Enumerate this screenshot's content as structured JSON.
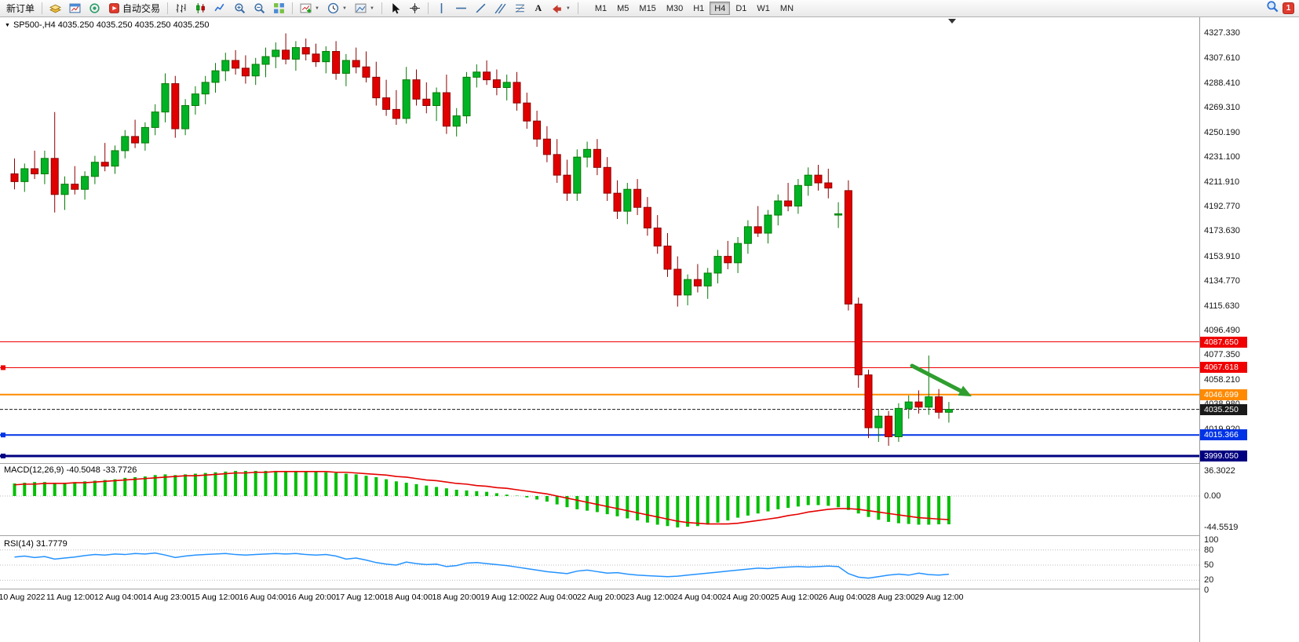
{
  "toolbar": {
    "new_order_label": "新订单",
    "auto_trading_label": "自动交易",
    "timeframes": [
      "M1",
      "M5",
      "M15",
      "M30",
      "H1",
      "H4",
      "D1",
      "W1",
      "MN"
    ],
    "active_timeframe": "H4",
    "notification_count": "1"
  },
  "chart": {
    "header": "SP500-,H4  4035.250 4035.250 4035.250 4035.250"
  },
  "chart_data": {
    "type": "candlestick",
    "symbol": "SP500-",
    "timeframe": "H4",
    "ohlc_display": [
      "4035.250",
      "4035.250",
      "4035.250",
      "4035.250"
    ],
    "colors": {
      "bull": "#00b325",
      "bull_border": "#067a06",
      "bear": "#e00000",
      "bear_border": "#8f0000",
      "macd_histogram": "#00bf00",
      "macd_signal": "#e60000",
      "rsi_line": "#2492ff",
      "arrow": "#2f9e2f"
    },
    "price_axis_labels": [
      "4327.330",
      "4307.610",
      "4288.410",
      "4269.310",
      "4250.190",
      "4231.100",
      "4211.910",
      "4192.770",
      "4173.630",
      "4153.910",
      "4134.770",
      "4115.630",
      "4096.490",
      "4077.350",
      "4058.210",
      "4038.980",
      "4019.920"
    ],
    "levels": [
      {
        "price": 4087.65,
        "label": "4087.650",
        "color": "#f00000",
        "width": 1,
        "style": "solid",
        "marker": false
      },
      {
        "price": 4067.618,
        "label": "4067.618",
        "color": "#f00000",
        "width": 1,
        "style": "solid",
        "marker": true
      },
      {
        "price": 4046.699,
        "label": "4046.699",
        "color": "#ff8a00",
        "width": 2,
        "style": "solid",
        "marker": false
      },
      {
        "price": 4035.25,
        "label": "4035.250",
        "color": "#1a1a1a",
        "width": 1,
        "style": "dashed",
        "marker": false
      },
      {
        "price": 4015.366,
        "label": "4015.366",
        "color": "#0033e6",
        "width": 2,
        "style": "solid",
        "marker": true
      },
      {
        "price": 3999.05,
        "label": "3999.050",
        "color": "#000080",
        "width": 3,
        "style": "solid",
        "marker": true
      }
    ],
    "candles": [
      [
        4218,
        4230,
        4206,
        4212
      ],
      [
        4212,
        4226,
        4204,
        4222
      ],
      [
        4222,
        4236,
        4214,
        4218
      ],
      [
        4218,
        4236,
        4210,
        4230
      ],
      [
        4230,
        4266,
        4188,
        4202
      ],
      [
        4202,
        4216,
        4190,
        4210
      ],
      [
        4210,
        4224,
        4202,
        4206
      ],
      [
        4206,
        4220,
        4198,
        4216
      ],
      [
        4216,
        4232,
        4210,
        4227
      ],
      [
        4227,
        4242,
        4220,
        4224
      ],
      [
        4224,
        4240,
        4218,
        4236
      ],
      [
        4236,
        4252,
        4230,
        4247
      ],
      [
        4247,
        4260,
        4238,
        4242
      ],
      [
        4242,
        4258,
        4236,
        4254
      ],
      [
        4254,
        4272,
        4248,
        4266
      ],
      [
        4266,
        4296,
        4258,
        4288
      ],
      [
        4288,
        4294,
        4246,
        4253
      ],
      [
        4253,
        4276,
        4248,
        4271
      ],
      [
        4271,
        4286,
        4264,
        4280
      ],
      [
        4280,
        4294,
        4272,
        4289
      ],
      [
        4289,
        4304,
        4281,
        4298
      ],
      [
        4298,
        4312,
        4290,
        4306
      ],
      [
        4306,
        4314,
        4295,
        4300
      ],
      [
        4300,
        4310,
        4288,
        4294
      ],
      [
        4294,
        4308,
        4287,
        4303
      ],
      [
        4303,
        4316,
        4293,
        4309
      ],
      [
        4309,
        4320,
        4300,
        4314
      ],
      [
        4314,
        4327,
        4303,
        4307
      ],
      [
        4307,
        4321,
        4298,
        4316
      ],
      [
        4316,
        4323,
        4306,
        4311
      ],
      [
        4311,
        4319,
        4301,
        4305
      ],
      [
        4305,
        4317,
        4296,
        4313
      ],
      [
        4313,
        4321,
        4291,
        4296
      ],
      [
        4296,
        4311,
        4286,
        4306
      ],
      [
        4306,
        4316,
        4296,
        4301
      ],
      [
        4301,
        4313,
        4289,
        4293
      ],
      [
        4293,
        4305,
        4271,
        4277
      ],
      [
        4277,
        4291,
        4263,
        4268
      ],
      [
        4268,
        4283,
        4256,
        4261
      ],
      [
        4261,
        4301,
        4257,
        4291
      ],
      [
        4291,
        4299,
        4271,
        4276
      ],
      [
        4276,
        4289,
        4265,
        4271
      ],
      [
        4271,
        4285,
        4259,
        4281
      ],
      [
        4281,
        4295,
        4249,
        4255
      ],
      [
        4255,
        4269,
        4247,
        4263
      ],
      [
        4263,
        4297,
        4257,
        4293
      ],
      [
        4293,
        4303,
        4285,
        4297
      ],
      [
        4297,
        4306,
        4287,
        4291
      ],
      [
        4291,
        4299,
        4279,
        4285
      ],
      [
        4285,
        4295,
        4275,
        4289
      ],
      [
        4289,
        4297,
        4267,
        4273
      ],
      [
        4273,
        4281,
        4253,
        4259
      ],
      [
        4259,
        4267,
        4239,
        4245
      ],
      [
        4245,
        4255,
        4227,
        4233
      ],
      [
        4233,
        4245,
        4211,
        4217
      ],
      [
        4217,
        4229,
        4197,
        4203
      ],
      [
        4203,
        4237,
        4197,
        4231
      ],
      [
        4231,
        4243,
        4223,
        4237
      ],
      [
        4237,
        4245,
        4217,
        4223
      ],
      [
        4223,
        4231,
        4197,
        4203
      ],
      [
        4203,
        4213,
        4183,
        4189
      ],
      [
        4189,
        4211,
        4179,
        4206
      ],
      [
        4206,
        4214,
        4186,
        4192
      ],
      [
        4192,
        4200,
        4170,
        4176
      ],
      [
        4176,
        4186,
        4156,
        4162
      ],
      [
        4162,
        4172,
        4138,
        4144
      ],
      [
        4144,
        4154,
        4115,
        4124
      ],
      [
        4124,
        4140,
        4116,
        4136
      ],
      [
        4136,
        4148,
        4126,
        4131
      ],
      [
        4131,
        4145,
        4121,
        4141
      ],
      [
        4141,
        4159,
        4133,
        4154
      ],
      [
        4154,
        4166,
        4144,
        4149
      ],
      [
        4149,
        4169,
        4141,
        4164
      ],
      [
        4164,
        4182,
        4156,
        4177
      ],
      [
        4177,
        4193,
        4169,
        4172
      ],
      [
        4172,
        4190,
        4164,
        4186
      ],
      [
        4186,
        4202,
        4178,
        4197
      ],
      [
        4197,
        4211,
        4189,
        4193
      ],
      [
        4193,
        4214,
        4187,
        4209
      ],
      [
        4209,
        4223,
        4201,
        4217
      ],
      [
        4217,
        4225,
        4205,
        4211
      ],
      [
        4211,
        4222,
        4199,
        4207
      ],
      [
        4186,
        4196,
        4176,
        4187
      ],
      [
        4205,
        4213,
        4112,
        4117
      ],
      [
        4117,
        4122,
        4052,
        4062
      ],
      [
        4062,
        4066,
        4013,
        4021
      ],
      [
        4021,
        4035,
        4010,
        4030
      ],
      [
        4030,
        4034,
        4007,
        4014
      ],
      [
        4014,
        4040,
        4010,
        4036
      ],
      [
        4036,
        4046,
        4028,
        4041
      ],
      [
        4041,
        4050,
        4032,
        4037
      ],
      [
        4037,
        4077,
        4031,
        4045
      ],
      [
        4045,
        4051,
        4028,
        4033
      ],
      [
        4033,
        4041,
        4025,
        4035.25
      ]
    ],
    "macd": {
      "label": "MACD(12,26,9) -40.5048 -33.7726",
      "axis_labels": [
        "36.3022",
        "0.00",
        "-44.5519"
      ],
      "histogram": [
        18,
        19,
        20,
        20,
        19,
        19,
        20,
        21,
        22,
        23,
        24,
        26,
        27,
        28,
        30,
        31,
        30,
        31,
        32,
        33,
        34,
        35,
        36,
        36,
        36,
        36,
        36,
        36,
        36,
        35,
        35,
        34,
        33,
        32,
        31,
        29,
        27,
        24,
        21,
        19,
        17,
        15,
        13,
        11,
        9,
        8,
        7,
        6,
        4,
        2,
        0.5,
        -2,
        -5,
        -8,
        -12,
        -16,
        -19,
        -21,
        -23,
        -26,
        -29,
        -32,
        -35,
        -38,
        -41,
        -43,
        -45,
        -44,
        -43,
        -41,
        -38,
        -35,
        -31,
        -28,
        -25,
        -22,
        -19,
        -17,
        -15,
        -13,
        -13,
        -14,
        -16,
        -20,
        -25,
        -30,
        -34,
        -37,
        -39,
        -40,
        -41,
        -41,
        -40.5,
        -40.5
      ],
      "signal": [
        16,
        17,
        17,
        18,
        18,
        18,
        19,
        19,
        20,
        21,
        22,
        23,
        24,
        25,
        26,
        27,
        28,
        29,
        29,
        30,
        31,
        32,
        33,
        33,
        34,
        34,
        35,
        35,
        35,
        35,
        35,
        35,
        34,
        34,
        33,
        32,
        31,
        30,
        28,
        27,
        25,
        23,
        22,
        20,
        18,
        17,
        15,
        14,
        12,
        11,
        9,
        7,
        5,
        3,
        0,
        -3,
        -6,
        -9,
        -12,
        -15,
        -18,
        -21,
        -24,
        -27,
        -30,
        -33,
        -36,
        -38,
        -39,
        -40,
        -40,
        -40,
        -39,
        -37,
        -35,
        -33,
        -31,
        -28,
        -26,
        -23,
        -21,
        -19,
        -18,
        -18,
        -19,
        -21,
        -23,
        -25,
        -27,
        -29,
        -31,
        -32,
        -33,
        -33.8
      ]
    },
    "rsi": {
      "label": "RSI(14) 31.7779",
      "axis_labels": [
        "100",
        "80",
        "50",
        "20",
        "0"
      ],
      "guides": [
        80,
        50,
        20
      ],
      "values": [
        66,
        68,
        65,
        67,
        62,
        64,
        66,
        69,
        71,
        70,
        72,
        71,
        73,
        72,
        74,
        70,
        65,
        68,
        70,
        71,
        72,
        73,
        71,
        70,
        71,
        72,
        73,
        72,
        73,
        71,
        70,
        71,
        68,
        62,
        64,
        60,
        55,
        52,
        50,
        56,
        53,
        51,
        52,
        47,
        49,
        54,
        55,
        53,
        51,
        49,
        46,
        43,
        40,
        37,
        35,
        33,
        38,
        40,
        37,
        34,
        35,
        32,
        30,
        29,
        28,
        27,
        28,
        30,
        32,
        34,
        36,
        38,
        40,
        42,
        44,
        43,
        45,
        46,
        47,
        46,
        47,
        48,
        47,
        33,
        26,
        24,
        27,
        30,
        32,
        30,
        34,
        31,
        30,
        31.8
      ]
    },
    "time_labels": [
      "10 Aug 2022",
      "11 Aug 12:00",
      "12 Aug 04:00",
      "14 Aug 23:00",
      "15 Aug 12:00",
      "16 Aug 04:00",
      "16 Aug 20:00",
      "17 Aug 12:00",
      "18 Aug 04:00",
      "18 Aug 20:00",
      "19 Aug 12:00",
      "22 Aug 04:00",
      "22 Aug 20:00",
      "23 Aug 12:00",
      "24 Aug 04:00",
      "24 Aug 20:00",
      "25 Aug 12:00",
      "26 Aug 04:00",
      "28 Aug 23:00",
      "29 Aug 12:00"
    ]
  }
}
